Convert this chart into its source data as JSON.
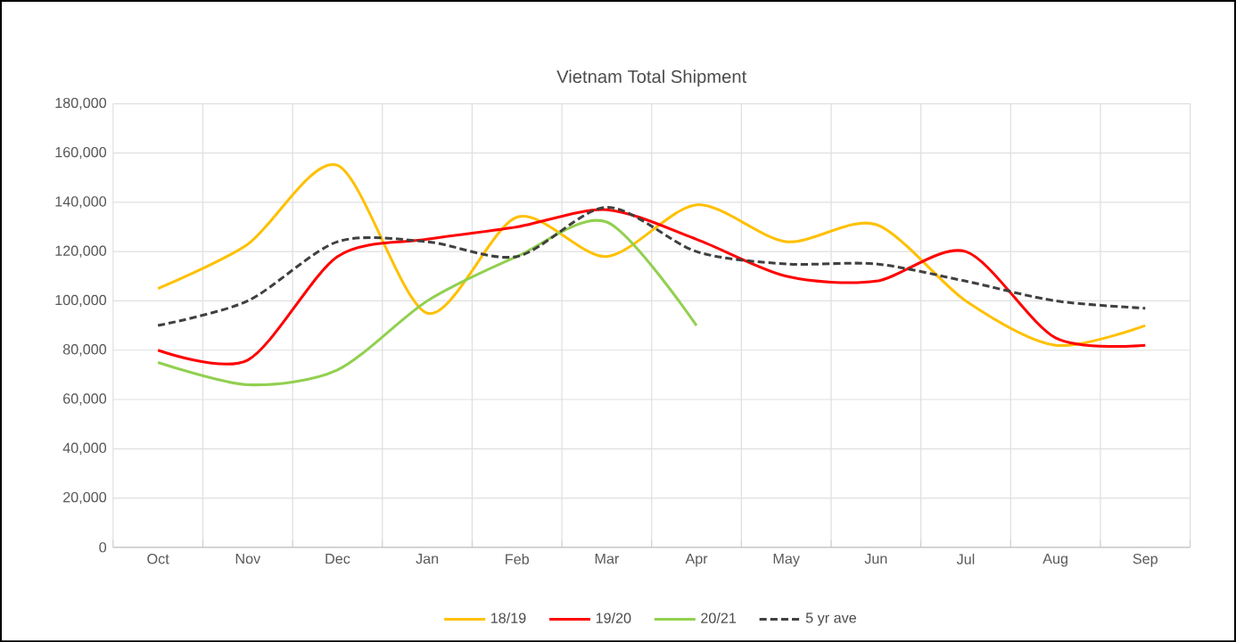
{
  "chart_data": {
    "type": "line",
    "title": "Vietnam Total Shipment",
    "categories": [
      "Oct",
      "Nov",
      "Dec",
      "Jan",
      "Feb",
      "Mar",
      "Apr",
      "May",
      "Jun",
      "Jul",
      "Aug",
      "Sep"
    ],
    "series": [
      {
        "name": "18/19",
        "color": "#ffc000",
        "values": [
          105000,
          123000,
          155000,
          95000,
          134000,
          118000,
          139000,
          124000,
          131000,
          100000,
          82000,
          90000
        ]
      },
      {
        "name": "19/20",
        "color": "#ff0000",
        "values": [
          80000,
          76000,
          118000,
          125000,
          130000,
          137000,
          125000,
          110000,
          108000,
          120000,
          85000,
          82000
        ]
      },
      {
        "name": "20/21",
        "color": "#92d050",
        "values": [
          75000,
          66000,
          72000,
          100000,
          118000,
          132000,
          90000,
          null,
          null,
          null,
          null,
          null
        ]
      },
      {
        "name": "5 yr ave",
        "color": "#404040",
        "line_style": "dashed",
        "values": [
          90000,
          100000,
          124000,
          124000,
          118000,
          138000,
          120000,
          115000,
          115000,
          108000,
          100000,
          97000
        ]
      }
    ],
    "ylim": [
      0,
      180000
    ],
    "yticks": [
      {
        "value": 0,
        "label": "0"
      },
      {
        "value": 20000,
        "label": "20,000"
      },
      {
        "value": 40000,
        "label": "40,000"
      },
      {
        "value": 60000,
        "label": "60,000"
      },
      {
        "value": 80000,
        "label": "80,000"
      },
      {
        "value": 100000,
        "label": "100,000"
      },
      {
        "value": 120000,
        "label": "120,000"
      },
      {
        "value": 140000,
        "label": "140,000"
      },
      {
        "value": 160000,
        "label": "160,000"
      },
      {
        "value": 180000,
        "label": "180,000"
      }
    ],
    "grid": true,
    "legend": "bottom",
    "marker": "none"
  }
}
